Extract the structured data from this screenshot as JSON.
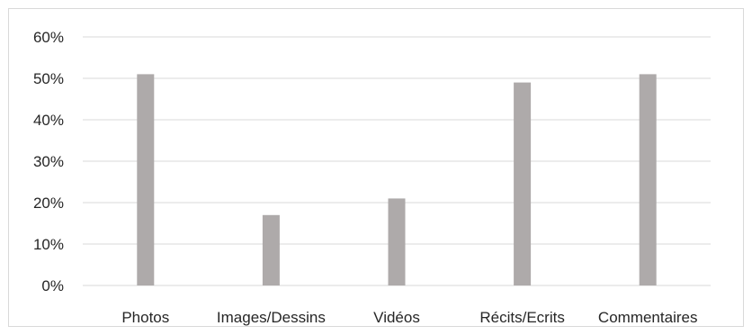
{
  "chart_data": {
    "type": "bar",
    "categories": [
      "Photos",
      "Images/Dessins",
      "Vidéos",
      "Récits/Ecrits",
      "Commentaires"
    ],
    "series": [
      {
        "values": [
          51,
          17,
          21,
          49,
          51
        ],
        "color": "#aeaaaa"
      }
    ],
    "y_ticks": [
      "0%",
      "10%",
      "20%",
      "30%",
      "40%",
      "50%",
      "60%"
    ],
    "ylim": [
      0,
      60
    ],
    "y_unit": "%",
    "grid": true,
    "gridline_color": "#d9d9d9",
    "legend": "none",
    "title": "",
    "xlabel": "",
    "ylabel": ""
  }
}
